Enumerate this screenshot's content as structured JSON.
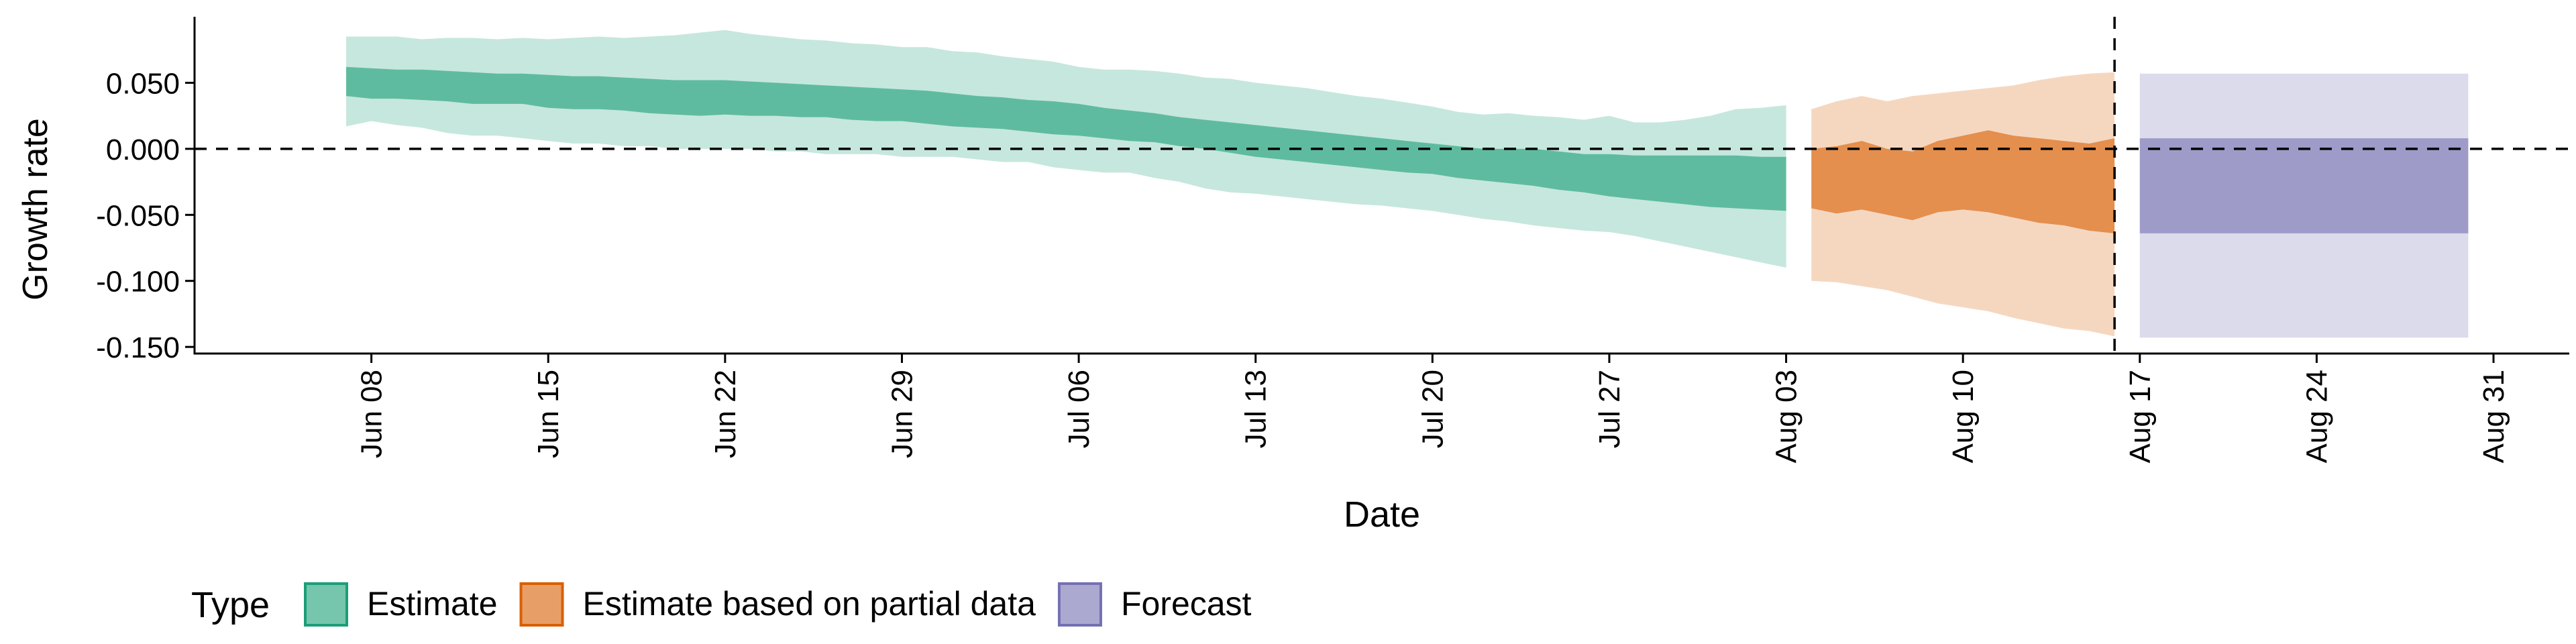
{
  "chart_data": {
    "type": "area",
    "xlabel": "Date",
    "ylabel": "Growth rate",
    "x_range": [
      "2020-06-01",
      "2020-09-03"
    ],
    "ylim": [
      -0.155,
      0.1
    ],
    "x_ticks": [
      {
        "date": "2020-06-08",
        "label": "Jun 08"
      },
      {
        "date": "2020-06-15",
        "label": "Jun 15"
      },
      {
        "date": "2020-06-22",
        "label": "Jun 22"
      },
      {
        "date": "2020-06-29",
        "label": "Jun 29"
      },
      {
        "date": "2020-07-06",
        "label": "Jul 06"
      },
      {
        "date": "2020-07-13",
        "label": "Jul 13"
      },
      {
        "date": "2020-07-20",
        "label": "Jul 20"
      },
      {
        "date": "2020-07-27",
        "label": "Jul 27"
      },
      {
        "date": "2020-08-03",
        "label": "Aug 03"
      },
      {
        "date": "2020-08-10",
        "label": "Aug 10"
      },
      {
        "date": "2020-08-17",
        "label": "Aug 17"
      },
      {
        "date": "2020-08-24",
        "label": "Aug 24"
      },
      {
        "date": "2020-08-31",
        "label": "Aug 31"
      }
    ],
    "y_ticks": [
      {
        "value": 0.05,
        "label": "0.050"
      },
      {
        "value": 0.0,
        "label": "0.000"
      },
      {
        "value": -0.05,
        "label": "-0.050"
      },
      {
        "value": -0.1,
        "label": "-0.100"
      },
      {
        "value": -0.15,
        "label": "-0.150"
      }
    ],
    "reference_lines": {
      "horizontal_y": 0.0,
      "vertical_date": "2020-08-16"
    },
    "grid": false,
    "legend_title": "Type",
    "legend_position": "bottom",
    "series": [
      {
        "name": "Estimate",
        "color": "#1b9e77",
        "x": [
          "2020-06-07",
          "2020-06-08",
          "2020-06-09",
          "2020-06-10",
          "2020-06-11",
          "2020-06-12",
          "2020-06-13",
          "2020-06-14",
          "2020-06-15",
          "2020-06-16",
          "2020-06-17",
          "2020-06-18",
          "2020-06-19",
          "2020-06-20",
          "2020-06-21",
          "2020-06-22",
          "2020-06-23",
          "2020-06-24",
          "2020-06-25",
          "2020-06-26",
          "2020-06-27",
          "2020-06-28",
          "2020-06-29",
          "2020-06-30",
          "2020-07-01",
          "2020-07-02",
          "2020-07-03",
          "2020-07-04",
          "2020-07-05",
          "2020-07-06",
          "2020-07-07",
          "2020-07-08",
          "2020-07-09",
          "2020-07-10",
          "2020-07-11",
          "2020-07-12",
          "2020-07-13",
          "2020-07-14",
          "2020-07-15",
          "2020-07-16",
          "2020-07-17",
          "2020-07-18",
          "2020-07-19",
          "2020-07-20",
          "2020-07-21",
          "2020-07-22",
          "2020-07-23",
          "2020-07-24",
          "2020-07-25",
          "2020-07-26",
          "2020-07-27",
          "2020-07-28",
          "2020-07-29",
          "2020-07-30",
          "2020-07-31",
          "2020-08-01",
          "2020-08-02",
          "2020-08-03"
        ],
        "lower_90": [
          0.017,
          0.021,
          0.018,
          0.016,
          0.012,
          0.01,
          0.01,
          0.008,
          0.006,
          0.004,
          0.004,
          0.002,
          0.002,
          0.0,
          0.0,
          0.0,
          0.0,
          -0.002,
          -0.002,
          -0.004,
          -0.004,
          -0.004,
          -0.006,
          -0.006,
          -0.006,
          -0.008,
          -0.01,
          -0.01,
          -0.014,
          -0.016,
          -0.018,
          -0.018,
          -0.022,
          -0.025,
          -0.03,
          -0.033,
          -0.034,
          -0.036,
          -0.038,
          -0.04,
          -0.042,
          -0.043,
          -0.045,
          -0.047,
          -0.05,
          -0.053,
          -0.055,
          -0.058,
          -0.06,
          -0.062,
          -0.063,
          -0.066,
          -0.07,
          -0.074,
          -0.078,
          -0.082,
          -0.086,
          -0.09
        ],
        "upper_90": [
          0.085,
          0.085,
          0.085,
          0.083,
          0.084,
          0.084,
          0.083,
          0.084,
          0.083,
          0.084,
          0.085,
          0.084,
          0.085,
          0.086,
          0.088,
          0.09,
          0.087,
          0.085,
          0.083,
          0.082,
          0.08,
          0.079,
          0.077,
          0.077,
          0.074,
          0.073,
          0.07,
          0.068,
          0.066,
          0.062,
          0.06,
          0.06,
          0.059,
          0.057,
          0.054,
          0.053,
          0.05,
          0.048,
          0.046,
          0.043,
          0.04,
          0.038,
          0.035,
          0.032,
          0.028,
          0.026,
          0.027,
          0.025,
          0.024,
          0.022,
          0.025,
          0.02,
          0.02,
          0.022,
          0.025,
          0.03,
          0.031,
          0.033
        ],
        "lower_50": [
          0.04,
          0.038,
          0.038,
          0.037,
          0.036,
          0.034,
          0.034,
          0.034,
          0.031,
          0.03,
          0.03,
          0.029,
          0.027,
          0.026,
          0.025,
          0.026,
          0.025,
          0.025,
          0.024,
          0.024,
          0.022,
          0.021,
          0.021,
          0.019,
          0.017,
          0.016,
          0.015,
          0.013,
          0.011,
          0.01,
          0.008,
          0.006,
          0.005,
          0.002,
          0.0,
          -0.003,
          -0.006,
          -0.008,
          -0.01,
          -0.012,
          -0.014,
          -0.016,
          -0.018,
          -0.019,
          -0.022,
          -0.024,
          -0.026,
          -0.028,
          -0.031,
          -0.033,
          -0.036,
          -0.038,
          -0.04,
          -0.042,
          -0.044,
          -0.045,
          -0.046,
          -0.047
        ],
        "upper_50": [
          0.062,
          0.061,
          0.06,
          0.06,
          0.059,
          0.058,
          0.057,
          0.057,
          0.056,
          0.055,
          0.055,
          0.054,
          0.053,
          0.052,
          0.052,
          0.052,
          0.051,
          0.05,
          0.049,
          0.048,
          0.047,
          0.046,
          0.045,
          0.044,
          0.042,
          0.04,
          0.039,
          0.037,
          0.036,
          0.034,
          0.031,
          0.029,
          0.027,
          0.024,
          0.022,
          0.02,
          0.018,
          0.016,
          0.014,
          0.012,
          0.01,
          0.008,
          0.006,
          0.004,
          0.002,
          0.0,
          0.0,
          0.0,
          -0.002,
          -0.004,
          -0.004,
          -0.005,
          -0.005,
          -0.005,
          -0.005,
          -0.005,
          -0.006,
          -0.006
        ]
      },
      {
        "name": "Estimate based on partial data",
        "color": "#d95f02",
        "x": [
          "2020-08-04",
          "2020-08-05",
          "2020-08-06",
          "2020-08-07",
          "2020-08-08",
          "2020-08-09",
          "2020-08-10",
          "2020-08-11",
          "2020-08-12",
          "2020-08-13",
          "2020-08-14",
          "2020-08-15",
          "2020-08-16"
        ],
        "lower_90": [
          -0.1,
          -0.101,
          -0.104,
          -0.107,
          -0.112,
          -0.117,
          -0.12,
          -0.123,
          -0.128,
          -0.132,
          -0.136,
          -0.138,
          -0.142
        ],
        "upper_90": [
          0.03,
          0.036,
          0.04,
          0.036,
          0.04,
          0.042,
          0.044,
          0.046,
          0.048,
          0.052,
          0.055,
          0.057,
          0.058
        ],
        "lower_50": [
          -0.045,
          -0.049,
          -0.046,
          -0.05,
          -0.054,
          -0.048,
          -0.046,
          -0.048,
          -0.052,
          -0.056,
          -0.058,
          -0.062,
          -0.064
        ],
        "upper_50": [
          0.0,
          0.002,
          0.006,
          0.0,
          -0.002,
          0.006,
          0.01,
          0.014,
          0.01,
          0.008,
          0.006,
          0.004,
          0.008
        ]
      },
      {
        "name": "Forecast",
        "color": "#7570b3",
        "x": [
          "2020-08-17",
          "2020-08-30"
        ],
        "lower_90": [
          -0.143,
          -0.143
        ],
        "upper_90": [
          0.057,
          0.057
        ],
        "lower_50": [
          -0.064,
          -0.064
        ],
        "upper_50": [
          0.008,
          0.008
        ]
      }
    ]
  }
}
